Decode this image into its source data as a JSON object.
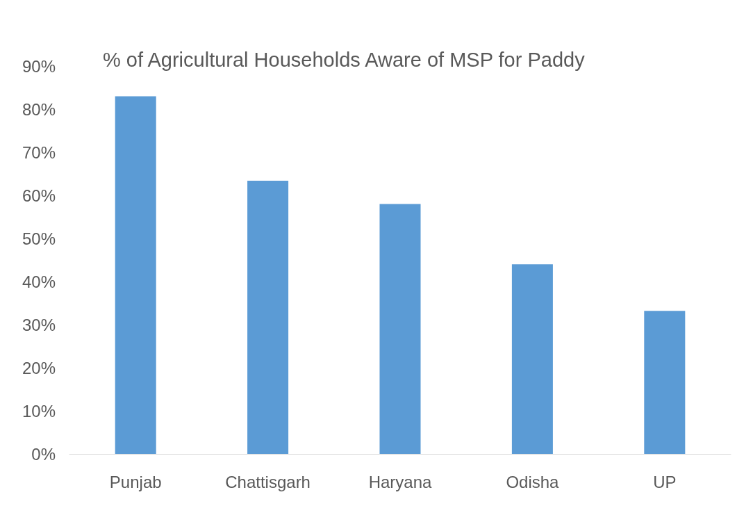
{
  "chart_data": {
    "type": "bar",
    "title": "% of Agricultural Households Aware of MSP for Paddy",
    "categories": [
      "Punjab",
      "Chattisgarh",
      "Haryana",
      "Odisha",
      "UP"
    ],
    "values": [
      83,
      63.4,
      58,
      44,
      33.2
    ],
    "color": "#5b9bd5",
    "ylim": [
      0,
      90
    ],
    "yticks": [
      {
        "value": 0,
        "label": "0%"
      },
      {
        "value": 10,
        "label": "10%"
      },
      {
        "value": 20,
        "label": "20%"
      },
      {
        "value": 30,
        "label": "30%"
      },
      {
        "value": 40,
        "label": "40%"
      },
      {
        "value": 50,
        "label": "50%"
      },
      {
        "value": 60,
        "label": "60%"
      },
      {
        "value": 70,
        "label": "70%"
      },
      {
        "value": 80,
        "label": "80%"
      },
      {
        "value": 90,
        "label": "90%"
      }
    ],
    "grid": false
  }
}
